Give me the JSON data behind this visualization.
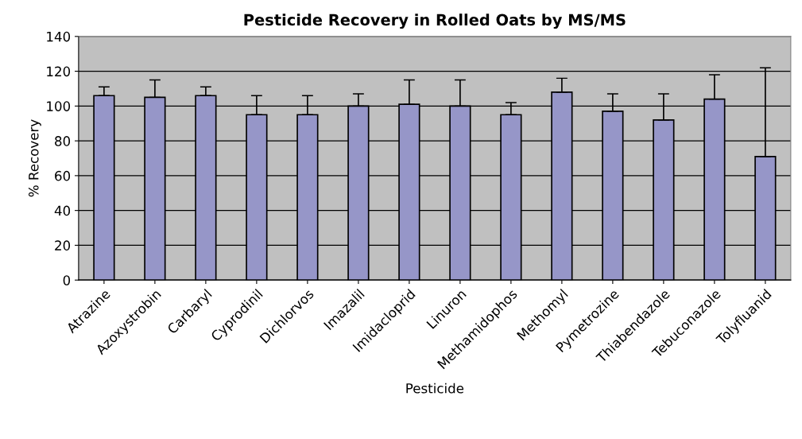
{
  "chart_data": {
    "type": "bar",
    "title": "Pesticide Recovery in Rolled Oats by MS/MS",
    "xlabel": "Pesticide",
    "ylabel": "% Recovery",
    "categories": [
      "Atrazine",
      "Azoxystrobin",
      "Carbaryl",
      "Cyprodinil",
      "Dichlorvos",
      "Imazalil",
      "Imidacloprid",
      "Linuron",
      "Methamidophos",
      "Methomyl",
      "Pymetrozine",
      "Thiabendazole",
      "Tebuconazole",
      "Tolyfluanid"
    ],
    "values": [
      106,
      105,
      106,
      95,
      95,
      100,
      101,
      100,
      95,
      108,
      97,
      92,
      104,
      71
    ],
    "errors": [
      [
        106,
        111
      ],
      [
        105,
        115
      ],
      [
        106,
        111
      ],
      [
        95,
        106
      ],
      [
        95,
        106
      ],
      [
        100,
        107
      ],
      [
        101,
        115
      ],
      [
        100,
        115
      ],
      [
        95,
        102
      ],
      [
        108,
        116
      ],
      [
        97,
        107
      ],
      [
        92,
        107
      ],
      [
        104,
        118
      ],
      [
        71,
        122
      ]
    ],
    "color": "#9696c8",
    "ylim": [
      0,
      140
    ],
    "yticks": [
      0,
      20,
      40,
      60,
      80,
      100,
      120,
      140
    ],
    "grid": "y"
  }
}
